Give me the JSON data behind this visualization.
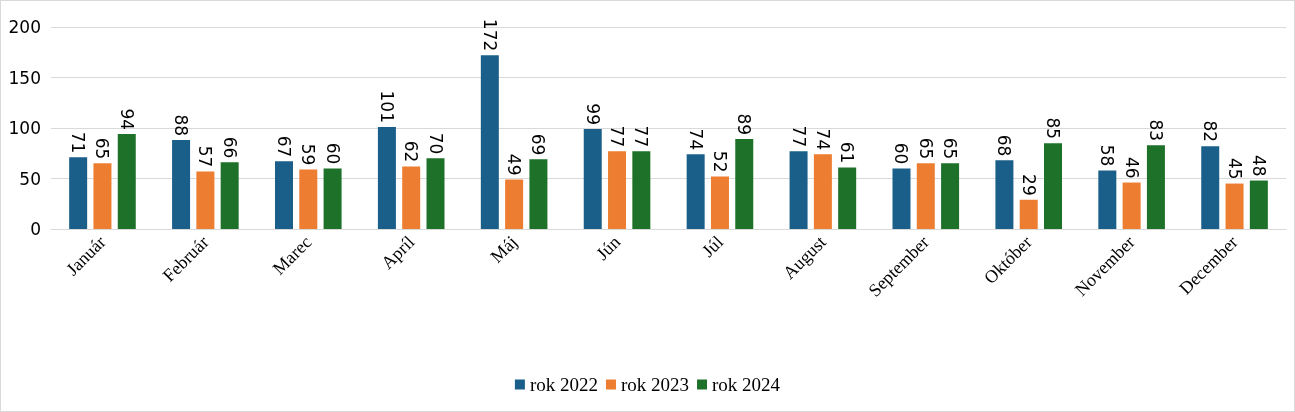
{
  "chart_data": {
    "type": "bar",
    "categories": [
      "Január",
      "Február",
      "Marec",
      "Apríl",
      "Máj",
      "Jún",
      "Júl",
      "August",
      "September",
      "Október",
      "November",
      "December"
    ],
    "series": [
      {
        "name": "rok 2022",
        "color": "#1a5f89",
        "values": [
          71,
          88,
          67,
          101,
          172,
          99,
          74,
          77,
          60,
          68,
          58,
          82
        ]
      },
      {
        "name": "rok 2023",
        "color": "#ed7d31",
        "values": [
          65,
          57,
          59,
          62,
          49,
          77,
          52,
          74,
          65,
          29,
          46,
          45
        ]
      },
      {
        "name": "rok 2024",
        "color": "#1e7128",
        "values": [
          94,
          66,
          60,
          70,
          69,
          77,
          89,
          61,
          65,
          85,
          83,
          48
        ]
      }
    ],
    "ylim": [
      0,
      200
    ],
    "yticks": [
      0,
      50,
      100,
      150,
      200
    ],
    "grid": "y",
    "legend": "bottom",
    "data_labels": true
  }
}
